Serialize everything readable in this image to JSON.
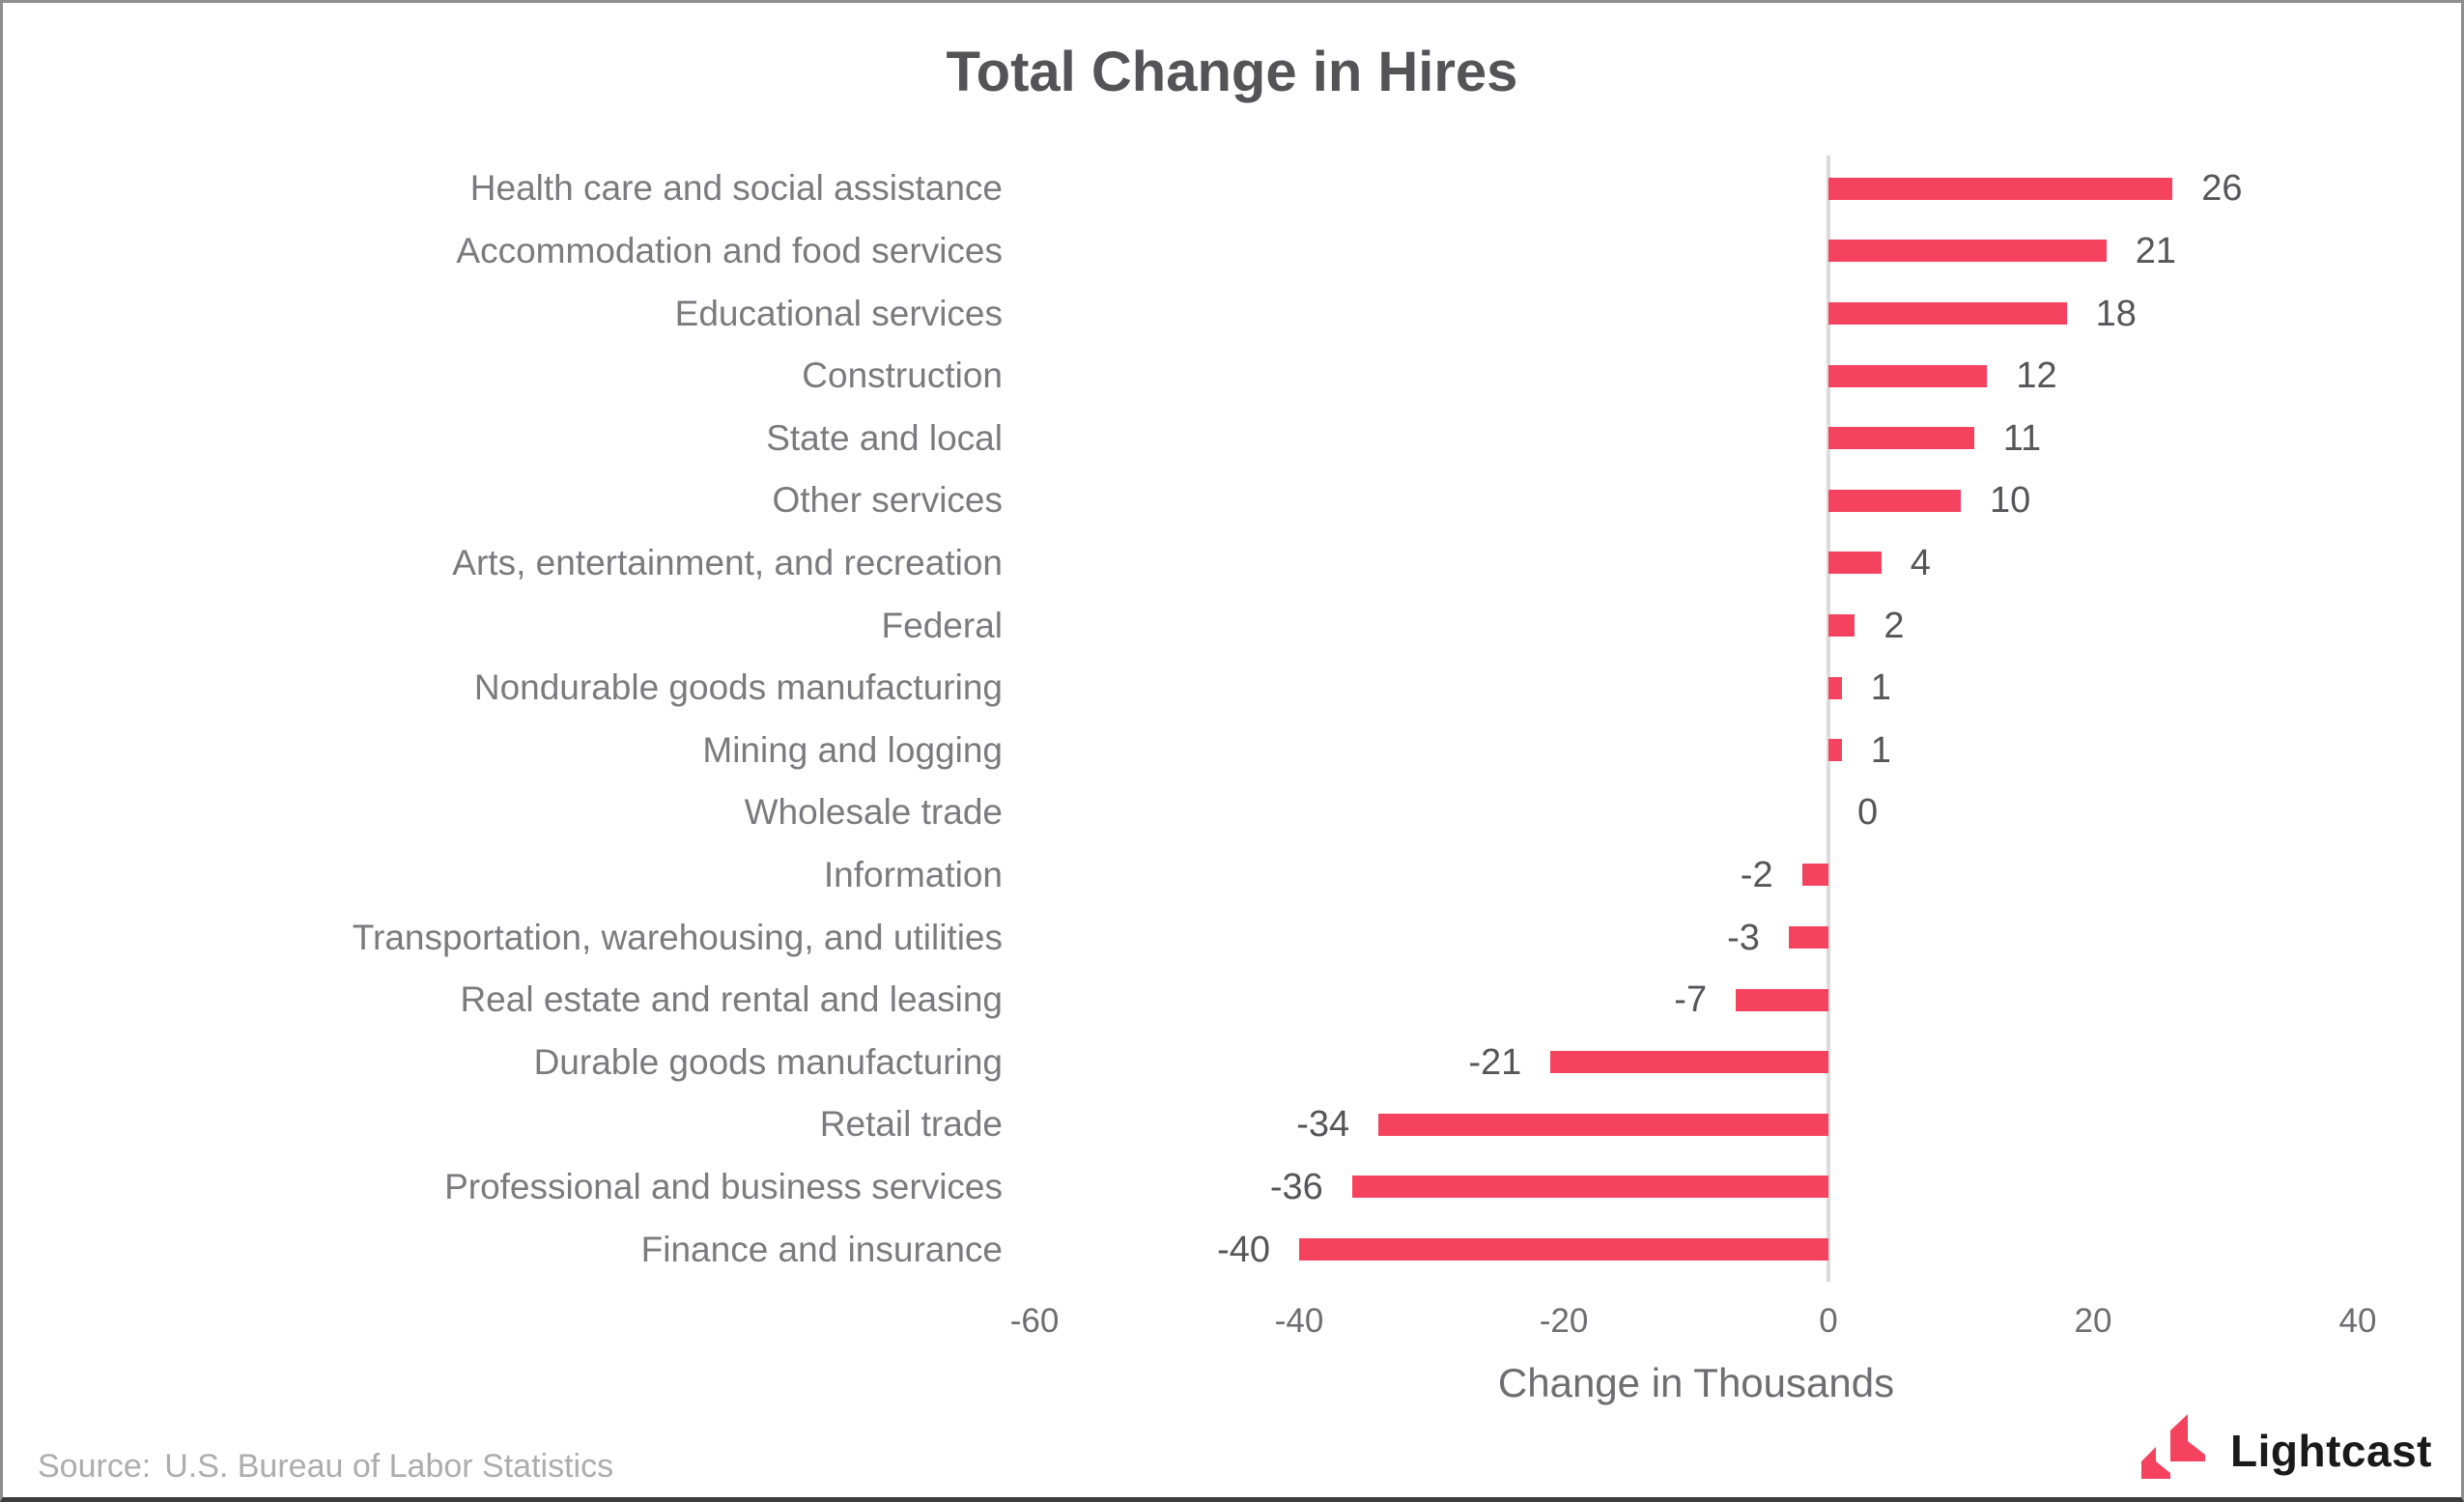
{
  "page": {
    "title": "Total Change in Hires",
    "source": {
      "label": "Source:",
      "text": "U.S. Bureau of Labor Statistics"
    },
    "logo": {
      "text": "Lightcast",
      "mark_icon": "lightcast-mark-icon"
    }
  },
  "colors": {
    "bar": "#f4425f",
    "logo_pink": "#f4425f",
    "logo_text": "#1a1a1a",
    "title_text": "#545456",
    "category_text": "#7b7b7d",
    "value_text": "#565658",
    "tick_text": "#6e6e70",
    "source_text": "#adadad",
    "axis_line": "#dbdbdb",
    "background": "#ffffff"
  },
  "chart_data": {
    "type": "bar",
    "orientation": "horizontal",
    "title": "Total Change in Hires",
    "xlabel": "Change in Thousands",
    "ylabel": "",
    "xlim": [
      -60,
      40
    ],
    "xticks": [
      -60,
      -40,
      -20,
      0,
      20,
      40
    ],
    "grid": false,
    "legend": false,
    "bar_color": "#f4425f",
    "value_labels_shown": true,
    "categories": [
      "Health care and social assistance",
      "Accommodation and food services",
      "Educational services",
      "Construction",
      "State and local",
      "Other services",
      "Arts, entertainment, and recreation",
      "Federal",
      "Nondurable goods manufacturing",
      "Mining and logging",
      "Wholesale trade",
      "Information",
      "Transportation, warehousing, and utilities",
      "Real estate and rental and leasing",
      "Durable goods manufacturing",
      "Retail trade",
      "Professional and business services",
      "Finance and insurance"
    ],
    "values": [
      26,
      21,
      18,
      12,
      11,
      10,
      4,
      2,
      1,
      1,
      0,
      -2,
      -3,
      -7,
      -21,
      -34,
      -36,
      -40
    ]
  }
}
